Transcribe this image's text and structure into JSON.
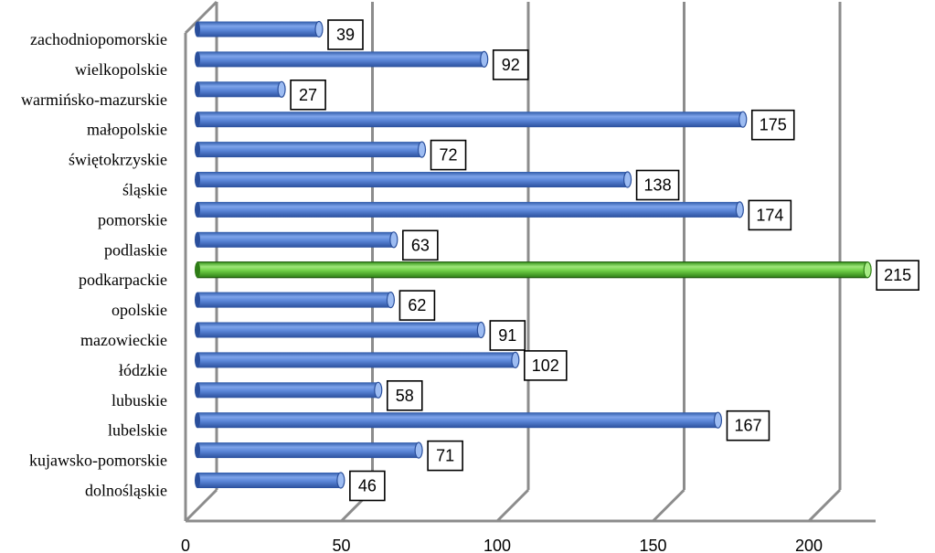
{
  "chart_data": {
    "type": "bar",
    "orientation": "horizontal",
    "categories": [
      "zachodniopomorskie",
      "wielkopolskie",
      "warmińsko-mazurskie",
      "małopolskie",
      "świętokrzyskie",
      "śląskie",
      "pomorskie",
      "podlaskie",
      "podkarpackie",
      "opolskie",
      "mazowieckie",
      "łódzkie",
      "lubuskie",
      "lubelskie",
      "kujawsko-pomorskie",
      "dolnośląskie"
    ],
    "values": [
      39,
      92,
      27,
      175,
      72,
      138,
      174,
      63,
      215,
      62,
      91,
      102,
      58,
      167,
      71,
      46
    ],
    "highlight_index": 8,
    "colors": {
      "bar": "#4f7fd6",
      "bar_dark": "#2a4f9c",
      "bar_light": "#9dbcf2",
      "highlight": "#5ec93a",
      "highlight_dark": "#2e7d16",
      "highlight_light": "#a8ec86",
      "grid": "#8c8c8c"
    },
    "xlim": [
      0,
      220
    ],
    "xticks": [
      0,
      50,
      100,
      150,
      200
    ],
    "grid": true,
    "legend": "none",
    "title": "",
    "xlabel": "",
    "ylabel": ""
  }
}
